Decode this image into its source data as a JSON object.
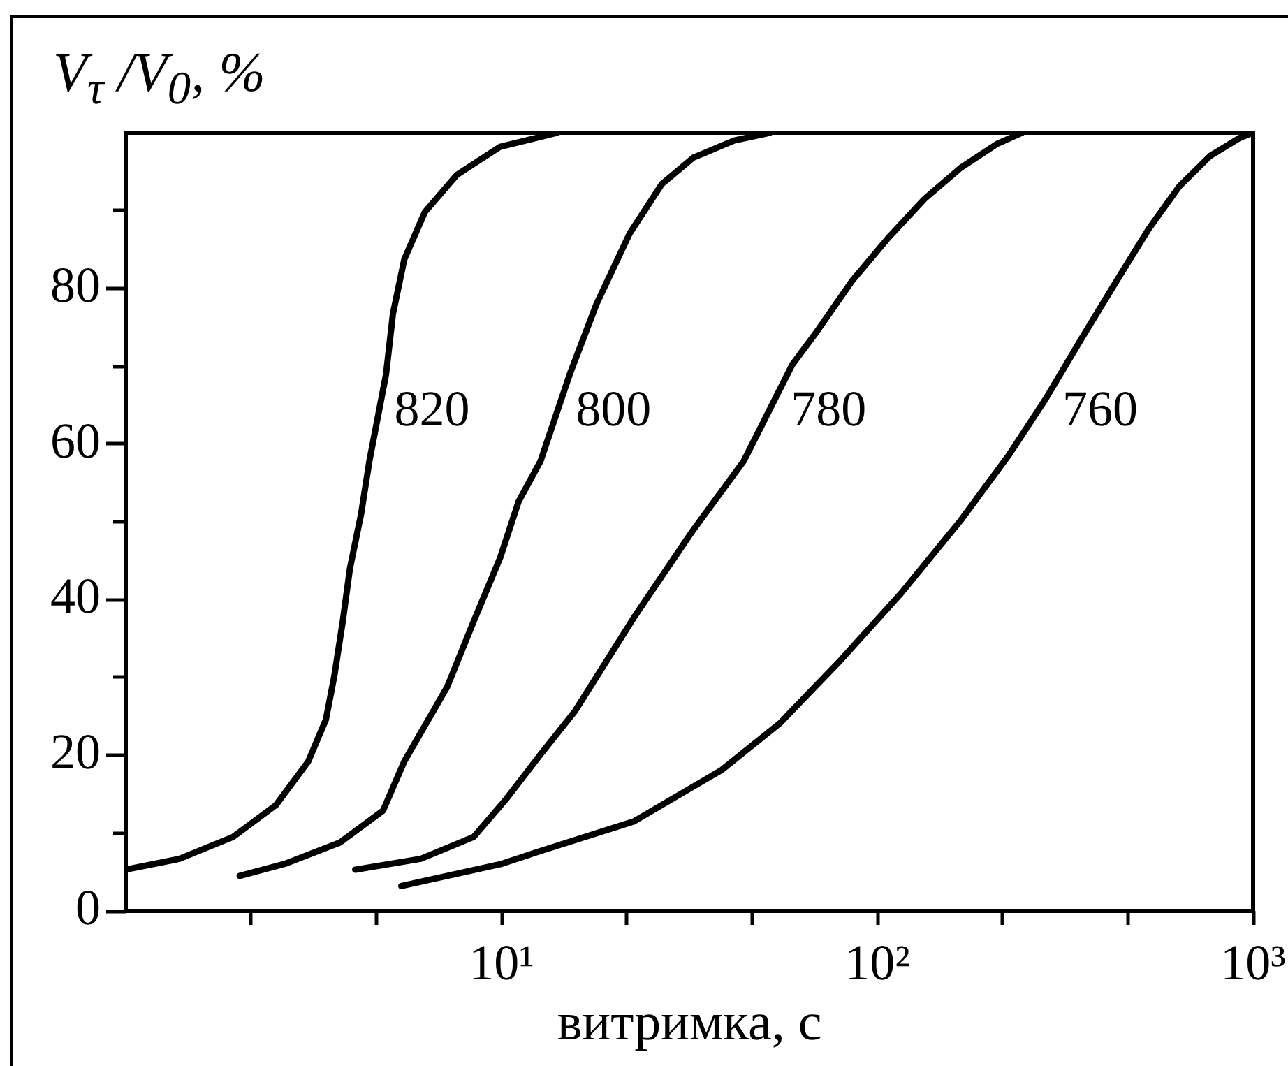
{
  "chart_data": {
    "type": "line",
    "xlabel": "витримка, с",
    "ylabel": "V$_{τ}$ /V$_{0}$, %",
    "series": [
      {
        "name": "820",
        "color": "#000000",
        "x": [
          1,
          1.39,
          1.93,
          2.51,
          3.06,
          3.41,
          3.59,
          3.78,
          3.95,
          4.23,
          4.45,
          4.93,
          5.14,
          5.51,
          6.25,
          7.61,
          9.92,
          14.1
        ],
        "values": [
          5.3,
          6.7,
          9.5,
          13.6,
          19.2,
          24.6,
          30.2,
          37.2,
          44,
          51,
          57.8,
          69,
          76.7,
          83.7,
          89.8,
          94.6,
          98.2,
          100
        ]
      },
      {
        "name": "800",
        "color": "#000000",
        "x": [
          2.01,
          2.67,
          3.72,
          4.84,
          5.51,
          7.17,
          8.43,
          9.92,
          11.1,
          12.7,
          15.2,
          17.9,
          21.9,
          26.7,
          32.4,
          41.6,
          51.8
        ],
        "values": [
          4.5,
          6.1,
          8.8,
          12.9,
          19.2,
          28.8,
          37.2,
          45.4,
          52.6,
          57.8,
          69,
          78,
          87,
          93.4,
          96.8,
          99,
          100
        ]
      },
      {
        "name": "780",
        "color": "#000000",
        "x": [
          4.08,
          6.1,
          8.43,
          10.3,
          12.7,
          15.7,
          22.5,
          32.2,
          44.1,
          59.4,
          68.7,
          85.8,
          107,
          133.6,
          166.8,
          209,
          243
        ],
        "values": [
          5.3,
          6.7,
          9.5,
          14.4,
          20.1,
          25.7,
          37.7,
          48.8,
          57.8,
          70.2,
          74.3,
          81,
          86.5,
          91.5,
          95.5,
          98.6,
          100
        ]
      },
      {
        "name": "760",
        "color": "#000000",
        "x": [
          5.41,
          9.92,
          12.7,
          22.5,
          38.5,
          55,
          79.8,
          115.6,
          166.8,
          224.8,
          280.6,
          350,
          439,
          527,
          636,
          768,
          918,
          1000
        ],
        "values": [
          3.2,
          6,
          7.7,
          11.5,
          18.1,
          24.1,
          32.2,
          40.8,
          50.2,
          58.7,
          65.8,
          73.6,
          81.4,
          87.6,
          93.1,
          97,
          99.3,
          100
        ]
      }
    ],
    "xlim": [
      1,
      1000
    ],
    "ylim": [
      0,
      100
    ],
    "xticks": [
      {
        "value": 2.154,
        "label": null
      },
      {
        "value": 4.642,
        "label": null
      },
      {
        "value": 10,
        "label": "10¹"
      },
      {
        "value": 21.54,
        "label": null
      },
      {
        "value": 46.42,
        "label": null
      },
      {
        "value": 100,
        "label": "10²"
      },
      {
        "value": 215.4,
        "label": null
      },
      {
        "value": 464.2,
        "label": null
      },
      {
        "value": 1000,
        "label": "10³"
      }
    ],
    "yticks": [
      0,
      {
        "value": 10,
        "label": null
      },
      20,
      {
        "value": 30,
        "label": null
      },
      40,
      {
        "value": 50,
        "label": null
      },
      60,
      {
        "value": 70,
        "label": null
      },
      80,
      {
        "value": 90,
        "label": null
      }
    ],
    "log": "x",
    "grid": false,
    "legend": false,
    "marker": "none",
    "line_style": "solid"
  }
}
